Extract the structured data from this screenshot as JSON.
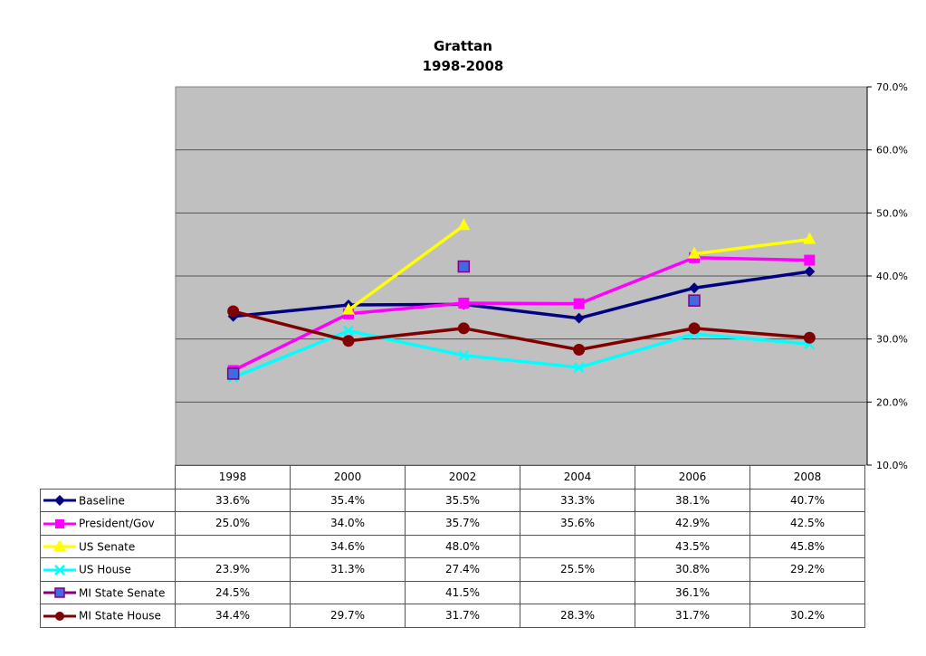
{
  "chart_data": {
    "type": "line",
    "title": "Grattan",
    "subtitle": "1998-2008",
    "categories": [
      "1998",
      "2000",
      "2002",
      "2004",
      "2006",
      "2008"
    ],
    "ylim": [
      10.0,
      70.0
    ],
    "yticks": [
      "10.0%",
      "20.0%",
      "30.0%",
      "40.0%",
      "50.0%",
      "60.0%",
      "70.0%"
    ],
    "y_axis_position": "right",
    "plot_background": "#c0c0c0",
    "grid": true,
    "legend": "data-table",
    "series": [
      {
        "name": "Baseline",
        "color": "#000080",
        "marker": "diamond",
        "values": [
          33.6,
          35.4,
          35.5,
          33.3,
          38.1,
          40.7
        ],
        "labels": [
          "33.6%",
          "35.4%",
          "35.5%",
          "33.3%",
          "38.1%",
          "40.7%"
        ]
      },
      {
        "name": "President/Gov",
        "color": "#ff00ff",
        "marker": "square",
        "values": [
          25.0,
          34.0,
          35.7,
          35.6,
          42.9,
          42.5
        ],
        "labels": [
          "25.0%",
          "34.0%",
          "35.7%",
          "35.6%",
          "42.9%",
          "42.5%"
        ]
      },
      {
        "name": "US Senate",
        "color": "#ffff00",
        "marker": "triangle",
        "values": [
          null,
          34.6,
          48.0,
          null,
          43.5,
          45.8
        ],
        "labels": [
          "",
          "34.6%",
          "48.0%",
          "",
          "43.5%",
          "45.8%"
        ]
      },
      {
        "name": "US House",
        "color": "#00ffff",
        "marker": "x",
        "values": [
          23.9,
          31.3,
          27.4,
          25.5,
          30.8,
          29.2
        ],
        "labels": [
          "23.9%",
          "31.3%",
          "27.4%",
          "25.5%",
          "30.8%",
          "29.2%"
        ]
      },
      {
        "name": "MI State Senate",
        "color": "#4169e1",
        "line_color": "#800080",
        "marker": "square-outlined",
        "line": false,
        "values": [
          24.5,
          null,
          41.5,
          null,
          36.1,
          null
        ],
        "labels": [
          "24.5%",
          "",
          "41.5%",
          "",
          "36.1%",
          ""
        ]
      },
      {
        "name": "MI State House",
        "color": "#800000",
        "marker": "circle",
        "values": [
          34.4,
          29.7,
          31.7,
          28.3,
          31.7,
          30.2
        ],
        "labels": [
          "34.4%",
          "29.7%",
          "31.7%",
          "28.3%",
          "31.7%",
          "30.2%"
        ]
      }
    ]
  }
}
